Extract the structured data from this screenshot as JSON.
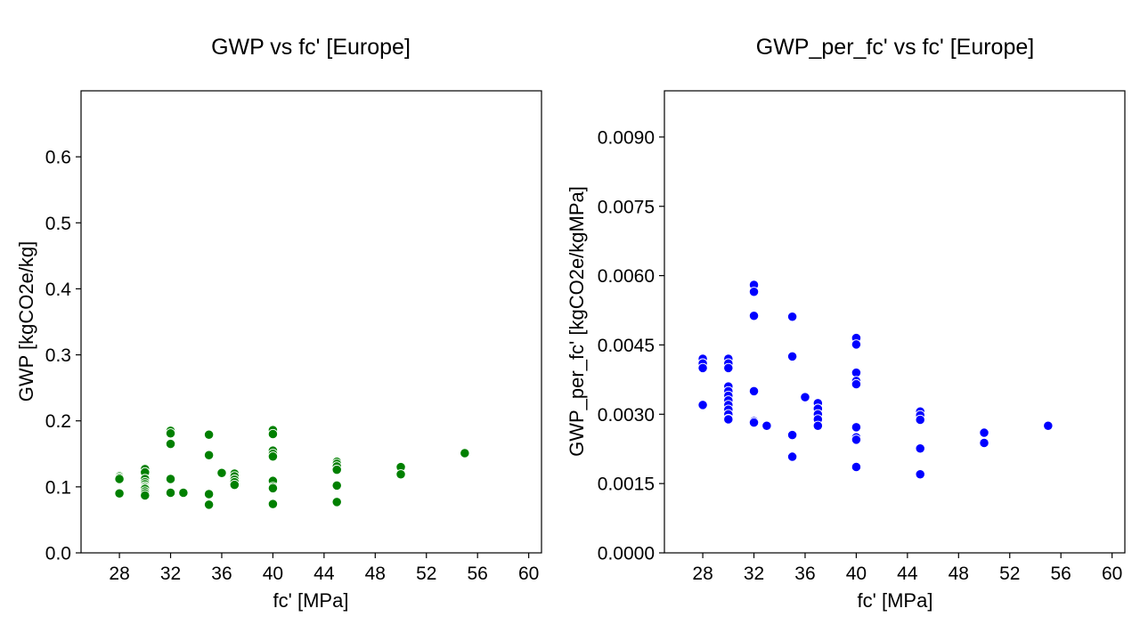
{
  "chart_data": [
    {
      "type": "scatter",
      "title": "GWP vs fc' [Europe]",
      "xlabel": "fc' [MPa]",
      "ylabel": "GWP [kgCO2e/kg]",
      "xlim": [
        25,
        61
      ],
      "ylim": [
        0,
        0.7
      ],
      "xticks": [
        28,
        32,
        36,
        40,
        44,
        48,
        52,
        56,
        60
      ],
      "yticks": [
        0.0,
        0.1,
        0.2,
        0.3,
        0.4,
        0.5,
        0.6
      ],
      "xtick_labels": [
        "28",
        "32",
        "36",
        "40",
        "44",
        "48",
        "52",
        "56",
        "60"
      ],
      "ytick_labels": [
        "0.0",
        "0.1",
        "0.2",
        "0.3",
        "0.4",
        "0.5",
        "0.6"
      ],
      "grid": false,
      "color": "#008000",
      "series": [
        {
          "x": [
            28,
            28,
            28,
            28,
            30,
            30,
            30,
            30,
            30,
            30,
            30,
            30,
            30,
            30,
            30,
            32,
            32,
            32,
            32,
            32,
            33,
            35,
            35,
            35,
            35,
            36,
            37,
            37,
            37,
            37,
            37,
            40,
            40,
            40,
            40,
            40,
            40,
            40,
            40,
            40,
            45,
            45,
            45,
            45,
            45,
            45,
            50,
            50,
            55
          ],
          "y": [
            0.116,
            0.114,
            0.112,
            0.09,
            0.127,
            0.122,
            0.112,
            0.107,
            0.104,
            0.101,
            0.099,
            0.097,
            0.093,
            0.09,
            0.087,
            0.185,
            0.181,
            0.165,
            0.112,
            0.091,
            0.091,
            0.179,
            0.148,
            0.089,
            0.073,
            0.121,
            0.12,
            0.116,
            0.111,
            0.107,
            0.103,
            0.186,
            0.18,
            0.155,
            0.15,
            0.146,
            0.109,
            0.1,
            0.098,
            0.074,
            0.138,
            0.135,
            0.131,
            0.126,
            0.102,
            0.077,
            0.13,
            0.119,
            0.151
          ]
        }
      ]
    },
    {
      "type": "scatter",
      "title": "GWP_per_fc' vs fc' [Europe]",
      "xlabel": "fc' [MPa]",
      "ylabel": "GWP_per_fc' [kgCO2e/kgMPa]",
      "xlim": [
        25,
        61
      ],
      "ylim": [
        0,
        0.01
      ],
      "xticks": [
        28,
        32,
        36,
        40,
        44,
        48,
        52,
        56,
        60
      ],
      "yticks": [
        0.0,
        0.0015,
        0.003,
        0.0045,
        0.006,
        0.0075,
        0.009
      ],
      "xtick_labels": [
        "28",
        "32",
        "36",
        "40",
        "44",
        "48",
        "52",
        "56",
        "60"
      ],
      "ytick_labels": [
        "0.0000",
        "0.0015",
        "0.0030",
        "0.0045",
        "0.0060",
        "0.0075",
        "0.0090"
      ],
      "grid": false,
      "color": "#0000ff",
      "series": [
        {
          "x": [
            28,
            28,
            28,
            28,
            30,
            30,
            30,
            30,
            30,
            30,
            30,
            30,
            30,
            30,
            30,
            30,
            32,
            32,
            32,
            32,
            32,
            32,
            33,
            35,
            35,
            35,
            35,
            36,
            37,
            37,
            37,
            37,
            37,
            40,
            40,
            40,
            40,
            40,
            40,
            40,
            40,
            40,
            45,
            45,
            45,
            45,
            45,
            50,
            50,
            55
          ],
          "y": [
            0.0042,
            0.0041,
            0.004,
            0.0032,
            0.0042,
            0.0041,
            0.004,
            0.0036,
            0.0035,
            0.0034,
            0.0033,
            0.0032,
            0.0031,
            0.003,
            0.0029,
            0.00289,
            0.0058,
            0.00565,
            0.00513,
            0.0035,
            0.00285,
            0.00282,
            0.00275,
            0.00511,
            0.00425,
            0.00255,
            0.00208,
            0.00337,
            0.00324,
            0.00312,
            0.003,
            0.00289,
            0.00275,
            0.00465,
            0.00451,
            0.0039,
            0.00372,
            0.00365,
            0.00272,
            0.0025,
            0.00245,
            0.00186,
            0.00306,
            0.00298,
            0.00288,
            0.00226,
            0.0017,
            0.0026,
            0.00238,
            0.00275
          ]
        }
      ]
    }
  ]
}
